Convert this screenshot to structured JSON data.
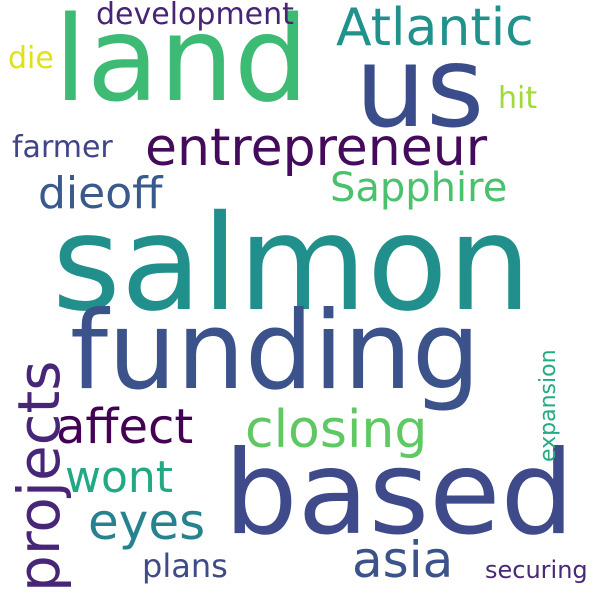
{
  "words": {
    "salmon": {
      "text": "salmon",
      "color": "#21908d"
    },
    "land": {
      "text": "land",
      "color": "#3dbb74"
    },
    "us": {
      "text": "us",
      "color": "#3b4c8a"
    },
    "funding": {
      "text": "funding",
      "color": "#3b528b"
    },
    "based": {
      "text": "based",
      "color": "#3e4a89"
    },
    "entrepreneur": {
      "text": "entrepreneur",
      "color": "#440a5b"
    },
    "atlantic": {
      "text": "Atlantic",
      "color": "#21918c"
    },
    "sapphire": {
      "text": "Sapphire",
      "color": "#4ac16d"
    },
    "dieoff": {
      "text": "dieoff",
      "color": "#3b5a8c"
    },
    "closing": {
      "text": "closing",
      "color": "#5ec962"
    },
    "affect": {
      "text": "affect",
      "color": "#440154"
    },
    "wont": {
      "text": "wont",
      "color": "#22a884"
    },
    "eyes": {
      "text": "eyes",
      "color": "#26828e"
    },
    "asia": {
      "text": "asia",
      "color": "#3b528b"
    },
    "plans": {
      "text": "plans",
      "color": "#3e4a89"
    },
    "securing": {
      "text": "securing",
      "color": "#482878"
    },
    "development": {
      "text": "development",
      "color": "#482475"
    },
    "farmer": {
      "text": "farmer",
      "color": "#414487"
    },
    "die": {
      "text": "die",
      "color": "#dde318"
    },
    "hit": {
      "text": "hit",
      "color": "#a0da39"
    },
    "projects": {
      "text": "projects",
      "color": "#482677"
    },
    "expansion": {
      "text": "expansion",
      "color": "#25ab82"
    }
  }
}
